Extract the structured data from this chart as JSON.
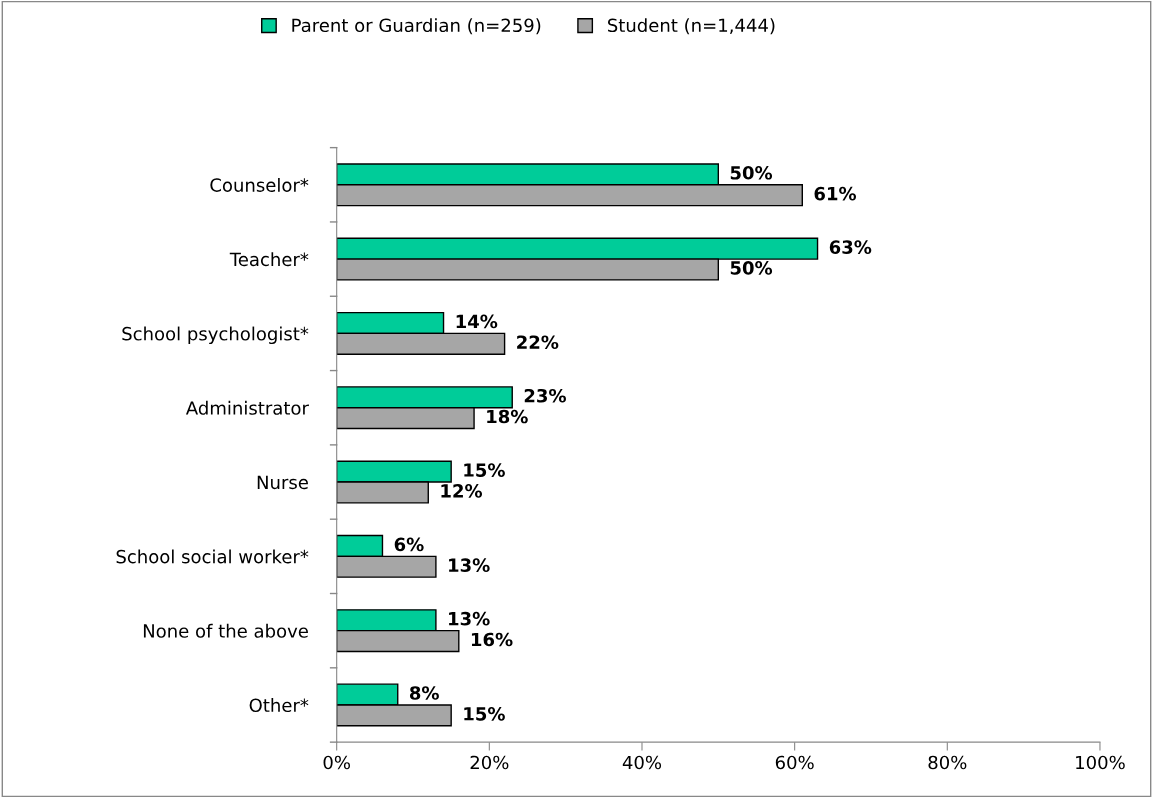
{
  "chart_data": {
    "type": "bar",
    "orientation": "horizontal",
    "categories": [
      "Counselor*",
      "Teacher*",
      "School psychologist*",
      "Administrator",
      "Nurse",
      "School social worker*",
      "None of the above",
      "Other*"
    ],
    "series": [
      {
        "name": "Parent or Guardian (n=259)",
        "color": "#00cc99",
        "values": [
          50,
          63,
          14,
          23,
          15,
          6,
          13,
          8
        ],
        "value_labels": [
          "50%",
          "63%",
          "14%",
          "23%",
          "15%",
          "6%",
          "13%",
          "8%"
        ]
      },
      {
        "name": "Student (n=1,444)",
        "color": "#a6a6a6",
        "values": [
          61,
          50,
          22,
          18,
          12,
          13,
          16,
          15
        ],
        "value_labels": [
          "61%",
          "50%",
          "22%",
          "18%",
          "12%",
          "13%",
          "16%",
          "15%"
        ]
      }
    ],
    "xlim": [
      0,
      100
    ],
    "xticks": [
      {
        "value": 0,
        "label": "0%"
      },
      {
        "value": 20,
        "label": "20%"
      },
      {
        "value": 40,
        "label": "40%"
      },
      {
        "value": 60,
        "label": "60%"
      },
      {
        "value": 80,
        "label": "80%"
      },
      {
        "value": 100,
        "label": "100%"
      }
    ],
    "grid": false,
    "legend": "top"
  }
}
